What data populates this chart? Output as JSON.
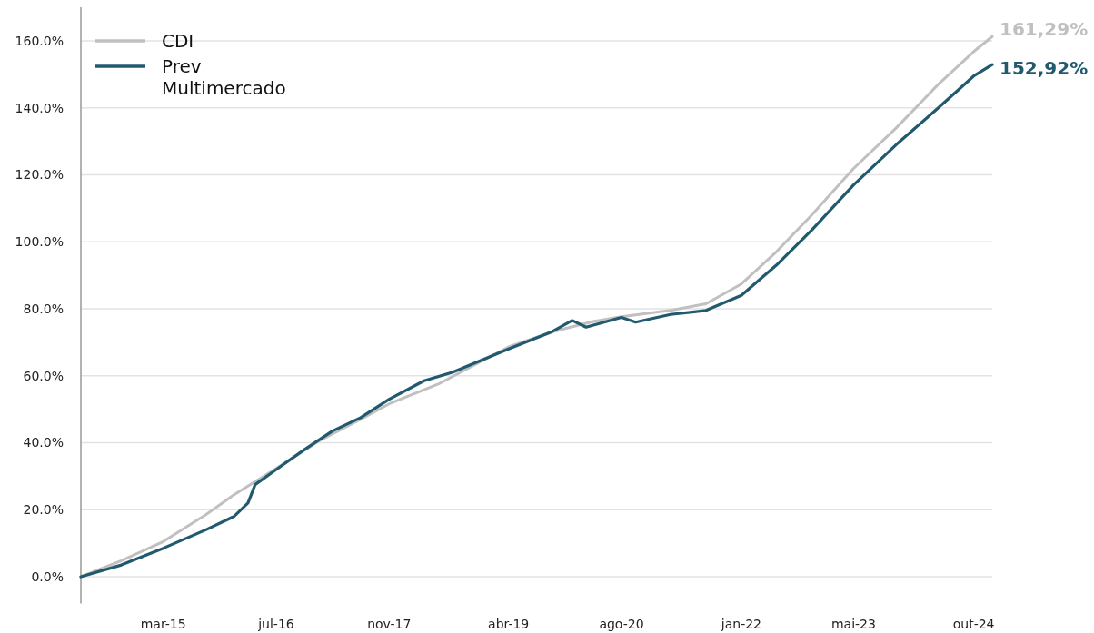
{
  "chart_data": {
    "type": "line",
    "xlim": [
      "2014-03-10",
      "2024-12-20"
    ],
    "xticks": [
      {
        "value": "2015-03",
        "label": "mar-15"
      },
      {
        "value": "2016-07",
        "label": "jul-16"
      },
      {
        "value": "2017-11",
        "label": "nov-17"
      },
      {
        "value": "2019-04",
        "label": "abr-19"
      },
      {
        "value": "2020-08",
        "label": "ago-20"
      },
      {
        "value": "2022-01",
        "label": "jan-22"
      },
      {
        "value": "2023-05",
        "label": "mai-23"
      },
      {
        "value": "2024-10",
        "label": "out-24"
      }
    ],
    "ylim": [
      -8,
      170
    ],
    "yticks": [
      {
        "value": 0,
        "label": "0.0%"
      },
      {
        "value": 20,
        "label": "20.0%"
      },
      {
        "value": 40,
        "label": "40.0%"
      },
      {
        "value": 60,
        "label": "60.0%"
      },
      {
        "value": 80,
        "label": "80.0%"
      },
      {
        "value": 100,
        "label": "100.0%"
      },
      {
        "value": 120,
        "label": "120.0%"
      },
      {
        "value": 140,
        "label": "140.0%"
      },
      {
        "value": 160,
        "label": "160.0%"
      }
    ],
    "grid": "y",
    "legend": "top left",
    "line_style": "solid",
    "marker": "none",
    "series": [
      {
        "name": "CDI",
        "color": "#c0c0c0",
        "x": [
          "2014-03-10",
          "2014-09",
          "2015-03",
          "2015-09",
          "2016-01",
          "2016-07",
          "2017-01",
          "2017-07",
          "2017-11",
          "2018-06",
          "2019-04",
          "2019-10",
          "2020-04",
          "2020-08",
          "2021-03",
          "2021-08",
          "2022-01",
          "2022-06",
          "2022-11",
          "2023-05",
          "2023-11",
          "2024-05",
          "2024-10",
          "2024-12-20"
        ],
        "values": [
          0,
          4.8,
          10.5,
          18.5,
          24.5,
          32.3,
          40.5,
          47,
          51.6,
          57.5,
          68.6,
          73,
          76.2,
          77.6,
          79.5,
          81.5,
          87.4,
          97,
          108,
          121.9,
          134,
          147,
          156.8,
          161.29
        ]
      },
      {
        "name": "Prev Multimercado",
        "color": "#215a6e",
        "x": [
          "2014-03-10",
          "2014-09",
          "2015-03",
          "2015-09",
          "2016-01",
          "2016-03",
          "2016-04",
          "2016-07",
          "2016-11",
          "2017-03",
          "2017-07",
          "2017-11",
          "2018-04",
          "2018-08",
          "2019-04",
          "2019-10",
          "2020-01",
          "2020-03",
          "2020-08",
          "2020-10",
          "2021-03",
          "2021-08",
          "2022-01",
          "2022-06",
          "2022-11",
          "2023-05",
          "2023-11",
          "2024-05",
          "2024-10",
          "2024-12-20"
        ],
        "values": [
          0,
          3.5,
          8.5,
          14,
          18,
          22,
          27.5,
          32,
          38,
          43.5,
          47.5,
          53,
          58.5,
          61,
          68,
          73,
          76.5,
          74.5,
          77.4,
          76,
          78.3,
          79.5,
          84,
          93,
          103.5,
          117,
          129,
          140,
          149.5,
          152.92
        ]
      }
    ],
    "annotations": [
      {
        "text": "161,29%",
        "x": "2024-12-20",
        "y": 161.29
      },
      {
        "text": "152,92%",
        "x": "2024-12-20",
        "y": 152.92
      }
    ]
  }
}
